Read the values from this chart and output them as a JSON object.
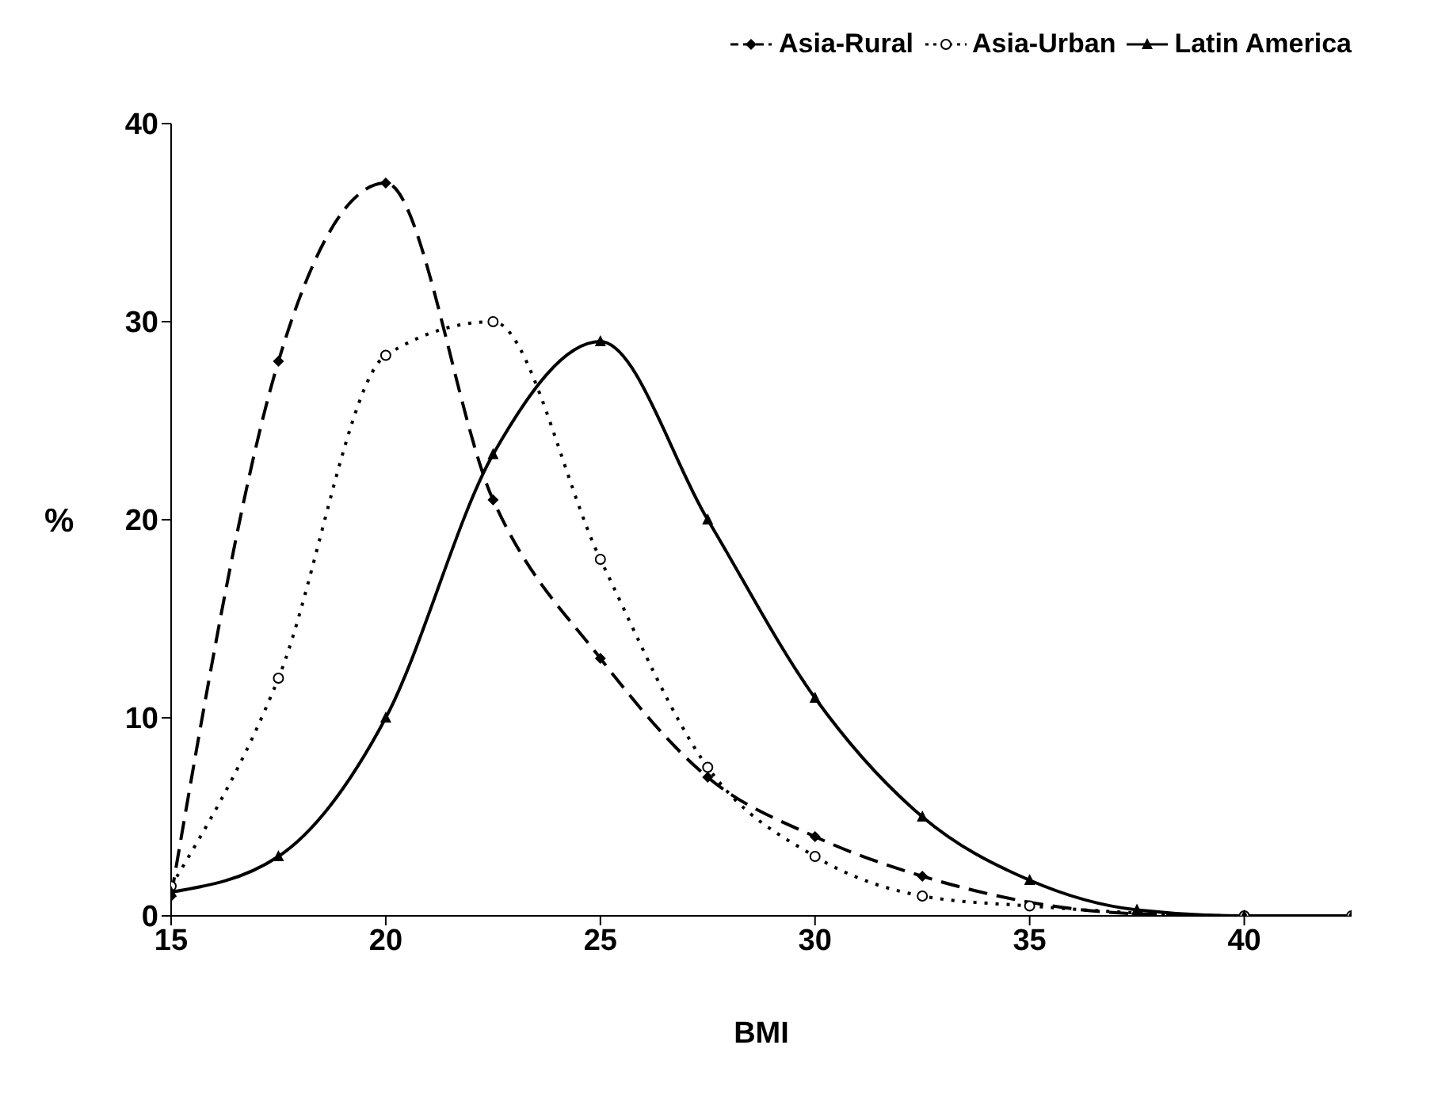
{
  "chart_data": {
    "type": "line",
    "xlabel": "BMI",
    "ylabel": "%",
    "x": [
      15,
      17.5,
      20,
      22.5,
      25,
      27.5,
      30,
      32.5,
      35,
      37.5,
      40,
      42.5
    ],
    "xlim": [
      15,
      42.5
    ],
    "xticks": [
      15,
      20,
      25,
      30,
      35,
      40
    ],
    "ylim": [
      0,
      40
    ],
    "yticks": [
      0,
      10,
      20,
      30,
      40
    ],
    "grid": false,
    "legend": "top right",
    "series": [
      {
        "name": "Asia-Rural",
        "color": "#000000",
        "marker": "diamond",
        "line_style": "dashed",
        "values": [
          1,
          28,
          37,
          21,
          13,
          7,
          4,
          2,
          null,
          0.1,
          0,
          0
        ]
      },
      {
        "name": "Asia-Urban",
        "color": "#000000",
        "marker": "circle",
        "line_style": "dotted",
        "values": [
          1.5,
          12,
          28.3,
          30,
          18,
          7.5,
          3,
          1,
          0.5,
          null,
          0,
          0
        ]
      },
      {
        "name": "Latin America",
        "color": "#000000",
        "marker": "triangle",
        "line_style": "solid",
        "values": [
          1.2,
          3,
          10,
          23.3,
          29,
          20,
          11,
          5,
          1.8,
          0.3,
          0,
          0
        ]
      }
    ]
  }
}
